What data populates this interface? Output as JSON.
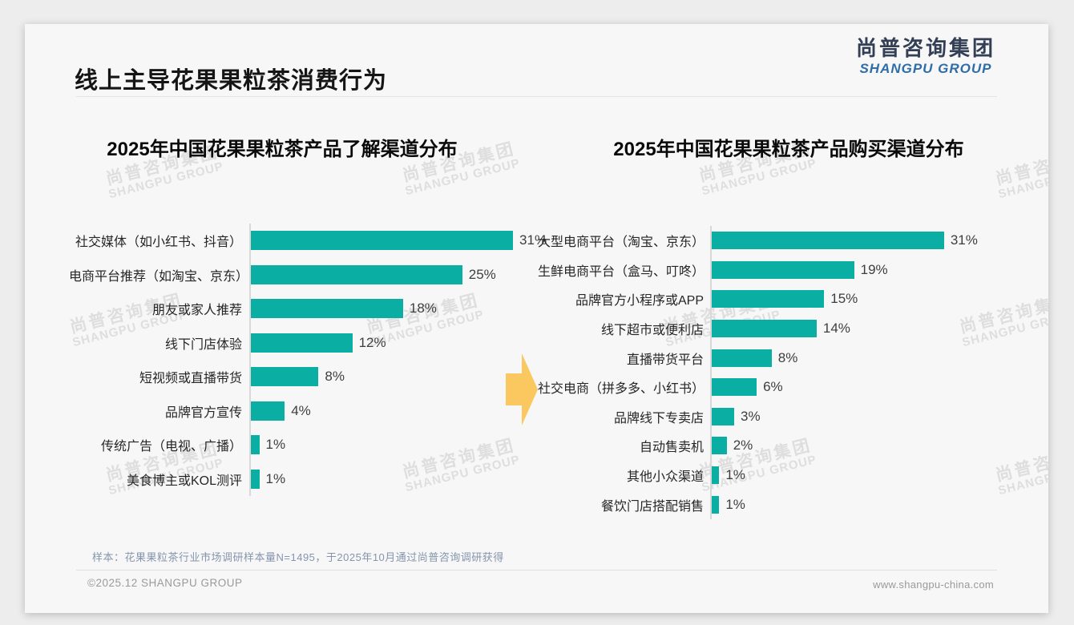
{
  "slide": {
    "title": "线上主导花果果粒茶消费行为",
    "logo": {
      "cn": "尚普咨询集团",
      "en": "SHANGPU GROUP"
    },
    "watermark": {
      "cn": "尚普咨询集团",
      "en": "SHANGPU GROUP"
    },
    "footnote": "样本：花果果粒茶行业市场调研样本量N=1495，于2025年10月通过尚普咨询调研获得",
    "copyright": "©2025.12 SHANGPU GROUP",
    "website": "www.shangpu-china.com"
  },
  "colors": {
    "bar_teal": "#0aaea3",
    "arrow_gold": "#fbc75f",
    "logo_navy": "#323f55",
    "logo_blue": "#2e6da8",
    "footnote_gray_blue": "#8595ae"
  },
  "chart_data": [
    {
      "type": "bar",
      "orientation": "horizontal",
      "title": "2025年中国花果果粒茶产品了解渠道分布",
      "unit": "%",
      "categories": [
        "社交媒体（如小红书、抖音）",
        "电商平台推荐（如淘宝、京东）",
        "朋友或家人推荐",
        "线下门店体验",
        "短视频或直播带货",
        "品牌官方宣传",
        "传统广告（电视、广播）",
        "美食博主或KOL测评"
      ],
      "values": [
        31,
        25,
        18,
        12,
        8,
        4,
        1,
        1
      ],
      "value_labels": [
        "31%",
        "25%",
        "18%",
        "12%",
        "8%",
        "4%",
        "1%",
        "1%"
      ],
      "xlim": [
        0,
        35
      ],
      "grid": false,
      "legend": "none",
      "bar_color": "#0aaea3"
    },
    {
      "type": "bar",
      "orientation": "horizontal",
      "title": "2025年中国花果果粒茶产品购买渠道分布",
      "unit": "%",
      "categories": [
        "大型电商平台（淘宝、京东）",
        "生鲜电商平台（盒马、叮咚）",
        "品牌官方小程序或APP",
        "线下超市或便利店",
        "直播带货平台",
        "社交电商（拼多多、小红书）",
        "品牌线下专卖店",
        "自动售卖机",
        "其他小众渠道",
        "餐饮门店搭配销售"
      ],
      "values": [
        31,
        19,
        15,
        14,
        8,
        6,
        3,
        2,
        1,
        1
      ],
      "value_labels": [
        "31%",
        "19%",
        "15%",
        "14%",
        "8%",
        "6%",
        "3%",
        "2%",
        "1%",
        "1%"
      ],
      "xlim": [
        0,
        35
      ],
      "grid": false,
      "legend": "none",
      "bar_color": "#0aaea3"
    }
  ]
}
